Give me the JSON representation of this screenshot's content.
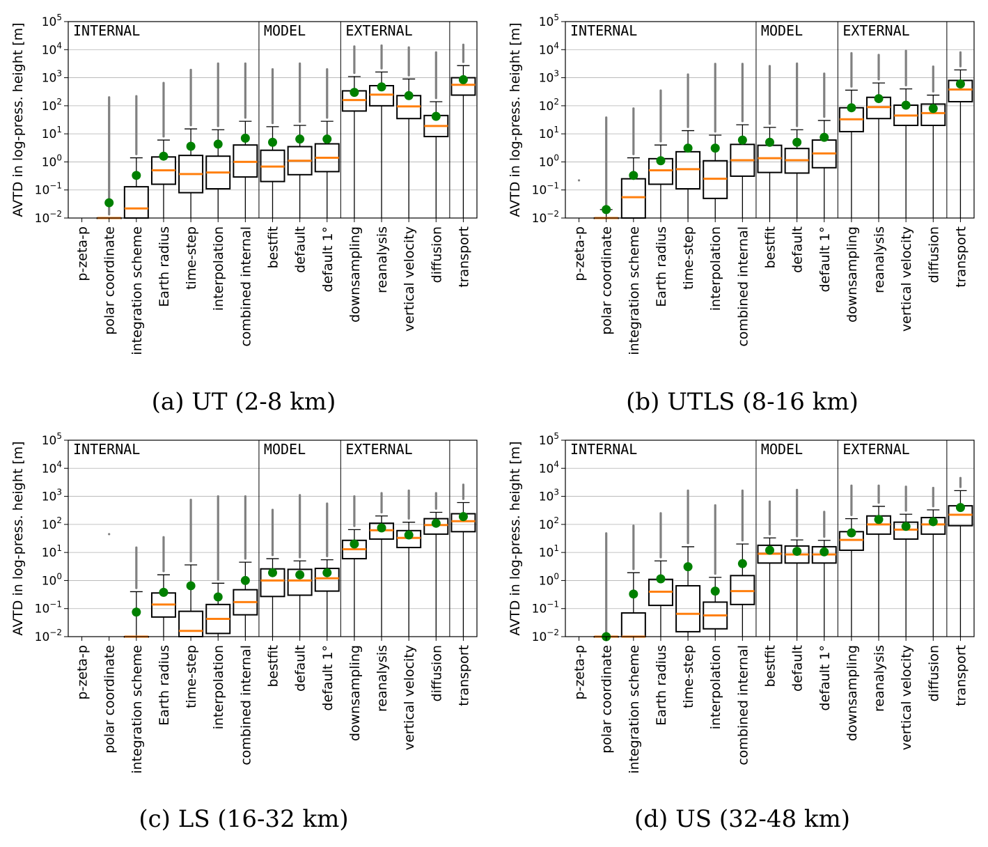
{
  "ylabel": "AVTD in log-press. height [m]",
  "categories": [
    "p-zeta-p",
    "polar coordinate",
    "integration scheme",
    "Earth radius",
    "time-step",
    "interpolation",
    "combined internal",
    "bestfit",
    "default",
    "default 1°",
    "downsampling",
    "reanalysis",
    "vertical velocity",
    "diffusion",
    "transport"
  ],
  "group_labels": [
    "INTERNAL",
    "MODEL",
    "EXTERNAL"
  ],
  "group_spans": [
    [
      0,
      6
    ],
    [
      7,
      9
    ],
    [
      10,
      13
    ],
    [
      14,
      14
    ]
  ],
  "yticks": [
    {
      "base": "10",
      "exp": "−2"
    },
    {
      "base": "10",
      "exp": "0"
    },
    {
      "base": "10",
      "exp": "2"
    },
    {
      "base": "10",
      "exp": "4"
    },
    {
      "base": "10",
      "exp": "−1"
    },
    {
      "base": "10",
      "exp": "1"
    },
    {
      "base": "10",
      "exp": "3"
    },
    {
      "base": "10",
      "exp": "5"
    }
  ],
  "colors": {
    "median": "#ff7f0e",
    "mean": "#008000",
    "outlier": "#808080",
    "box": "#000000",
    "grid": "#b0b0b0"
  },
  "chart_data": [
    {
      "type": "box",
      "title": "(a) UT (2-8 km)",
      "ylabel": "AVTD in log-press. height [m]",
      "yscale": "log",
      "ylim": [
        0.01,
        100000
      ],
      "boxes": [
        {
          "cat": "p-zeta-p",
          "q1": null,
          "median": null,
          "q3": null,
          "whisker_high": null,
          "mean": null,
          "outlier_max": null
        },
        {
          "cat": "polar coordinate",
          "q1": 0.01,
          "median": 0.01,
          "q3": 0.01,
          "whisker_high": 0.01,
          "mean": 0.035,
          "outlier_max": 200
        },
        {
          "cat": "integration scheme",
          "q1": 0.01,
          "median": 0.022,
          "q3": 0.13,
          "whisker_high": 1.4,
          "mean": 0.33,
          "outlier_max": 220
        },
        {
          "cat": "Earth radius",
          "q1": 0.16,
          "median": 0.5,
          "q3": 1.5,
          "whisker_high": 6,
          "mean": 1.6,
          "outlier_max": 650
        },
        {
          "cat": "time-step",
          "q1": 0.08,
          "median": 0.37,
          "q3": 1.7,
          "whisker_high": 15,
          "mean": 3.6,
          "outlier_max": 1900
        },
        {
          "cat": "interpolation",
          "q1": 0.11,
          "median": 0.42,
          "q3": 1.6,
          "whisker_high": 14,
          "mean": 4.3,
          "outlier_max": 3200
        },
        {
          "cat": "combined internal",
          "q1": 0.29,
          "median": 1.0,
          "q3": 4.0,
          "whisker_high": 28,
          "mean": 7,
          "outlier_max": 3200
        },
        {
          "cat": "bestfit",
          "q1": 0.2,
          "median": 0.68,
          "q3": 2.6,
          "whisker_high": 18,
          "mean": 5,
          "outlier_max": 2000
        },
        {
          "cat": "default",
          "q1": 0.35,
          "median": 1.1,
          "q3": 3.5,
          "whisker_high": 20,
          "mean": 6.5,
          "outlier_max": 3200
        },
        {
          "cat": "default 1°",
          "q1": 0.45,
          "median": 1.4,
          "q3": 4.4,
          "whisker_high": 28,
          "mean": 6.5,
          "outlier_max": 2000
        },
        {
          "cat": "downsampling",
          "q1": 65,
          "median": 160,
          "q3": 340,
          "whisker_high": 1100,
          "mean": 300,
          "outlier_max": 13000
        },
        {
          "cat": "reanalysis",
          "q1": 100,
          "median": 250,
          "q3": 520,
          "whisker_high": 1600,
          "mean": 470,
          "outlier_max": 14000
        },
        {
          "cat": "vertical velocity",
          "q1": 35,
          "median": 95,
          "q3": 230,
          "whisker_high": 900,
          "mean": 230,
          "outlier_max": 12000
        },
        {
          "cat": "diffusion",
          "q1": 8,
          "median": 19,
          "q3": 45,
          "whisker_high": 140,
          "mean": 42,
          "outlier_max": 8000
        },
        {
          "cat": "transport",
          "q1": 240,
          "median": 560,
          "q3": 1000,
          "whisker_high": 2700,
          "mean": 850,
          "outlier_max": 15000
        }
      ]
    },
    {
      "type": "box",
      "title": "(b) UTLS (8-16 km)",
      "ylabel": "AVTD in log-press. height [m]",
      "yscale": "log",
      "ylim": [
        0.01,
        100000
      ],
      "boxes": [
        {
          "cat": "p-zeta-p",
          "q1": null,
          "median": null,
          "q3": null,
          "whisker_high": null,
          "mean": null,
          "outlier_max": 0.22
        },
        {
          "cat": "polar coordinate",
          "q1": 0.01,
          "median": 0.01,
          "q3": 0.01,
          "whisker_high": 0.02,
          "mean": 0.02,
          "outlier_max": 38
        },
        {
          "cat": "integration scheme",
          "q1": 0.01,
          "median": 0.055,
          "q3": 0.25,
          "whisker_high": 1.4,
          "mean": 0.33,
          "outlier_max": 80
        },
        {
          "cat": "Earth radius",
          "q1": 0.16,
          "median": 0.5,
          "q3": 1.3,
          "whisker_high": 4,
          "mean": 1.1,
          "outlier_max": 350
        },
        {
          "cat": "time-step",
          "q1": 0.11,
          "median": 0.55,
          "q3": 2.3,
          "whisker_high": 13,
          "mean": 3.1,
          "outlier_max": 1300
        },
        {
          "cat": "interpolation",
          "q1": 0.05,
          "median": 0.25,
          "q3": 1.1,
          "whisker_high": 9,
          "mean": 3.1,
          "outlier_max": 3100
        },
        {
          "cat": "combined internal",
          "q1": 0.31,
          "median": 1.15,
          "q3": 4.2,
          "whisker_high": 21,
          "mean": 6,
          "outlier_max": 3100
        },
        {
          "cat": "bestfit",
          "q1": 0.42,
          "median": 1.35,
          "q3": 3.9,
          "whisker_high": 17,
          "mean": 5,
          "outlier_max": 2600
        },
        {
          "cat": "default",
          "q1": 0.4,
          "median": 1.15,
          "q3": 3.0,
          "whisker_high": 14,
          "mean": 5,
          "outlier_max": 3200
        },
        {
          "cat": "default 1°",
          "q1": 0.62,
          "median": 2.0,
          "q3": 6.0,
          "whisker_high": 30,
          "mean": 7.5,
          "outlier_max": 1400
        },
        {
          "cat": "downsampling",
          "q1": 12,
          "median": 33,
          "q3": 85,
          "whisker_high": 360,
          "mean": 85,
          "outlier_max": 7500
        },
        {
          "cat": "reanalysis",
          "q1": 35,
          "median": 90,
          "q3": 200,
          "whisker_high": 650,
          "mean": 180,
          "outlier_max": 6500
        },
        {
          "cat": "vertical velocity",
          "q1": 20,
          "median": 45,
          "q3": 105,
          "whisker_high": 400,
          "mean": 105,
          "outlier_max": 9000
        },
        {
          "cat": "diffusion",
          "q1": 20,
          "median": 55,
          "q3": 115,
          "whisker_high": 240,
          "mean": 80,
          "outlier_max": 2500
        },
        {
          "cat": "transport",
          "q1": 140,
          "median": 380,
          "q3": 800,
          "whisker_high": 1900,
          "mean": 600,
          "outlier_max": 8000
        }
      ]
    },
    {
      "type": "box",
      "title": "(c) LS (16-32 km)",
      "ylabel": "AVTD in log-press. height [m]",
      "yscale": "log",
      "ylim": [
        0.01,
        100000
      ],
      "boxes": [
        {
          "cat": "p-zeta-p",
          "q1": null,
          "median": null,
          "q3": null,
          "whisker_high": null,
          "mean": null,
          "outlier_max": null
        },
        {
          "cat": "polar coordinate",
          "q1": null,
          "median": null,
          "q3": null,
          "whisker_high": null,
          "mean": null,
          "outlier_max": 45
        },
        {
          "cat": "integration scheme",
          "q1": 0.01,
          "median": 0.01,
          "q3": 0.01,
          "whisker_high": 0.4,
          "mean": 0.075,
          "outlier_max": 15
        },
        {
          "cat": "Earth radius",
          "q1": 0.05,
          "median": 0.14,
          "q3": 0.36,
          "whisker_high": 1.6,
          "mean": 0.38,
          "outlier_max": 35
        },
        {
          "cat": "time-step",
          "q1": 0.01,
          "median": 0.016,
          "q3": 0.08,
          "whisker_high": 3.6,
          "mean": 0.65,
          "outlier_max": 750
        },
        {
          "cat": "interpolation",
          "q1": 0.013,
          "median": 0.043,
          "q3": 0.14,
          "whisker_high": 0.8,
          "mean": 0.26,
          "outlier_max": 1000
        },
        {
          "cat": "combined internal",
          "q1": 0.06,
          "median": 0.17,
          "q3": 0.47,
          "whisker_high": 4.5,
          "mean": 1.0,
          "outlier_max": 1000
        },
        {
          "cat": "bestfit",
          "q1": 0.27,
          "median": 1.0,
          "q3": 2.6,
          "whisker_high": 6,
          "mean": 1.9,
          "outlier_max": 330
        },
        {
          "cat": "default",
          "q1": 0.3,
          "median": 1.0,
          "q3": 2.5,
          "whisker_high": 5,
          "mean": 1.6,
          "outlier_max": 1100
        },
        {
          "cat": "default 1°",
          "q1": 0.42,
          "median": 1.2,
          "q3": 2.7,
          "whisker_high": 5.5,
          "mean": 1.9,
          "outlier_max": 550
        },
        {
          "cat": "downsampling",
          "q1": 6,
          "median": 13,
          "q3": 27,
          "whisker_high": 65,
          "mean": 20,
          "outlier_max": 1000
        },
        {
          "cat": "reanalysis",
          "q1": 30,
          "median": 62,
          "q3": 110,
          "whisker_high": 200,
          "mean": 75,
          "outlier_max": 1300
        },
        {
          "cat": "vertical velocity",
          "q1": 15,
          "median": 33,
          "q3": 60,
          "whisker_high": 120,
          "mean": 42,
          "outlier_max": 1600
        },
        {
          "cat": "diffusion",
          "q1": 45,
          "median": 95,
          "q3": 160,
          "whisker_high": 270,
          "mean": 110,
          "outlier_max": 1300
        },
        {
          "cat": "transport",
          "q1": 55,
          "median": 130,
          "q3": 240,
          "whisker_high": 600,
          "mean": 190,
          "outlier_max": 2600
        }
      ]
    },
    {
      "type": "box",
      "title": "(d) US (32-48 km)",
      "ylabel": "AVTD in log-press. height [m]",
      "yscale": "log",
      "ylim": [
        0.01,
        100000
      ],
      "boxes": [
        {
          "cat": "p-zeta-p",
          "q1": null,
          "median": null,
          "q3": null,
          "whisker_high": null,
          "mean": null,
          "outlier_max": null
        },
        {
          "cat": "polar coordinate",
          "q1": 0.01,
          "median": 0.01,
          "q3": 0.01,
          "whisker_high": 0.01,
          "mean": 0.01,
          "outlier_max": 48
        },
        {
          "cat": "integration scheme",
          "q1": 0.01,
          "median": 0.01,
          "q3": 0.07,
          "whisker_high": 1.9,
          "mean": 0.33,
          "outlier_max": 90
        },
        {
          "cat": "Earth radius",
          "q1": 0.13,
          "median": 0.4,
          "q3": 1.1,
          "whisker_high": 5,
          "mean": 1.15,
          "outlier_max": 250
        },
        {
          "cat": "time-step",
          "q1": 0.015,
          "median": 0.065,
          "q3": 0.65,
          "whisker_high": 16,
          "mean": 3.1,
          "outlier_max": 1600
        },
        {
          "cat": "interpolation",
          "q1": 0.019,
          "median": 0.057,
          "q3": 0.17,
          "whisker_high": 1.3,
          "mean": 0.42,
          "outlier_max": 480
        },
        {
          "cat": "combined internal",
          "q1": 0.14,
          "median": 0.42,
          "q3": 1.5,
          "whisker_high": 20,
          "mean": 4,
          "outlier_max": 1600
        },
        {
          "cat": "bestfit",
          "q1": 4.2,
          "median": 9,
          "q3": 18,
          "whisker_high": 33,
          "mean": 12,
          "outlier_max": 650
        },
        {
          "cat": "default",
          "q1": 4.2,
          "median": 8.5,
          "q3": 17,
          "whisker_high": 28,
          "mean": 11,
          "outlier_max": 1700
        },
        {
          "cat": "default 1°",
          "q1": 4.2,
          "median": 8.5,
          "q3": 16,
          "whisker_high": 27,
          "mean": 10.5,
          "outlier_max": 280
        },
        {
          "cat": "downsampling",
          "q1": 12,
          "median": 28,
          "q3": 55,
          "whisker_high": 160,
          "mean": 50,
          "outlier_max": 2400
        },
        {
          "cat": "reanalysis",
          "q1": 45,
          "median": 100,
          "q3": 200,
          "whisker_high": 440,
          "mean": 150,
          "outlier_max": 2400
        },
        {
          "cat": "vertical velocity",
          "q1": 30,
          "median": 65,
          "q3": 120,
          "whisker_high": 230,
          "mean": 85,
          "outlier_max": 2200
        },
        {
          "cat": "diffusion",
          "q1": 45,
          "median": 100,
          "q3": 175,
          "whisker_high": 330,
          "mean": 125,
          "outlier_max": 2000
        },
        {
          "cat": "transport",
          "q1": 90,
          "median": 220,
          "q3": 460,
          "whisker_high": 1600,
          "mean": 400,
          "outlier_max": 4500
        }
      ]
    }
  ]
}
